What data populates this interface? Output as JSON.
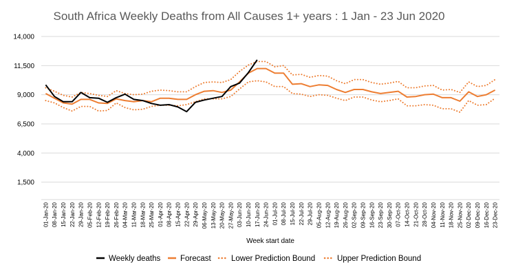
{
  "chart_data": {
    "type": "line",
    "title": "South Africa Weekly Deaths from All Causes 1+ years : 1 Jan  - 23 Jun 2020",
    "xlabel": "Week start date",
    "ylabel": "",
    "ylim": [
      0,
      14000
    ],
    "yticks": [
      1500,
      4000,
      6500,
      9000,
      11500,
      14000
    ],
    "ytick_labels": [
      "1,500",
      "4,000",
      "6,500",
      "9,000",
      "11,500",
      "14,000"
    ],
    "grid": "horizontal",
    "legend_position": "bottom",
    "categories": [
      "01-Jan-20",
      "08-Jan-20",
      "15-Jan-20",
      "22-Jan-20",
      "29-Jan-20",
      "05-Feb-20",
      "12-Feb-20",
      "19-Feb-20",
      "26-Feb-20",
      "04-Mar-20",
      "11-Mar-20",
      "18-Mar-20",
      "25-Mar-20",
      "01-Apr-20",
      "08-Apr-20",
      "15-Apr-20",
      "22-Apr-20",
      "29-Apr-20",
      "06-May-20",
      "13-May-20",
      "20-May-20",
      "27-May-20",
      "03-Jun-20",
      "10-Jun-20",
      "17-Jun-20",
      "24-Jun-20",
      "01-Jul-20",
      "08-Jul-20",
      "15-Jul-20",
      "22-Jul-20",
      "29-Jul-20",
      "05-Aug-20",
      "12-Aug-20",
      "19-Aug-20",
      "26-Aug-20",
      "02-Sep-20",
      "09-Sep-20",
      "16-Sep-20",
      "23-Sep-20",
      "30-Sep-20",
      "07-Oct-20",
      "14-Oct-20",
      "21-Oct-20",
      "28-Oct-20",
      "04-Nov-20",
      "11-Nov-20",
      "18-Nov-20",
      "25-Nov-20",
      "02-Dec-20",
      "09-Dec-20",
      "16-Dec-20",
      "23-Dec-20"
    ],
    "series": [
      {
        "name": "Weekly deaths",
        "color": "#000000",
        "style": "solid",
        "values": [
          9850,
          8850,
          8400,
          8400,
          9200,
          8750,
          8700,
          8350,
          8750,
          9050,
          8600,
          8500,
          8250,
          8100,
          8150,
          7950,
          7550,
          8350,
          8550,
          8700,
          8850,
          9700,
          10000,
          10900,
          12000,
          null,
          null,
          null,
          null,
          null,
          null,
          null,
          null,
          null,
          null,
          null,
          null,
          null,
          null,
          null,
          null,
          null,
          null,
          null,
          null,
          null,
          null,
          null,
          null,
          null,
          null,
          null
        ]
      },
      {
        "name": "Forecast",
        "color": "#ed7d31",
        "style": "solid",
        "values": [
          9100,
          8700,
          8300,
          8200,
          8600,
          8600,
          8300,
          8250,
          8650,
          8500,
          8400,
          8500,
          8400,
          8700,
          8700,
          8600,
          8600,
          9000,
          9300,
          9350,
          9200,
          9400,
          10100,
          10850,
          11250,
          11250,
          10850,
          10850,
          9900,
          9950,
          9700,
          9850,
          9800,
          9450,
          9200,
          9450,
          9450,
          9250,
          9100,
          9200,
          9300,
          8800,
          8850,
          9000,
          9050,
          8750,
          8750,
          8450,
          9250,
          8850,
          9000,
          9400
        ]
      },
      {
        "name": "Lower Prediction Bound",
        "color": "#ed7d31",
        "style": "dotted",
        "values": [
          8500,
          8300,
          7900,
          7600,
          8000,
          8000,
          7600,
          7650,
          8300,
          7900,
          7700,
          7750,
          8000,
          8100,
          8100,
          8050,
          8150,
          8400,
          8650,
          8650,
          8650,
          8850,
          9500,
          10100,
          10200,
          10100,
          9700,
          9700,
          9100,
          9050,
          8850,
          9000,
          8950,
          8700,
          8500,
          8800,
          8800,
          8550,
          8400,
          8500,
          8650,
          8050,
          8050,
          8150,
          8100,
          7800,
          7800,
          7500,
          8500,
          8100,
          8150,
          8700
        ]
      },
      {
        "name": "Upper Prediction Bound",
        "color": "#ed7d31",
        "style": "dotted",
        "values": [
          9600,
          9300,
          8950,
          8800,
          9200,
          9100,
          8950,
          8850,
          9350,
          9100,
          9000,
          9050,
          9300,
          9400,
          9350,
          9250,
          9250,
          9700,
          10050,
          10100,
          10050,
          10300,
          11000,
          11550,
          11850,
          11850,
          11400,
          11500,
          10700,
          10750,
          10500,
          10650,
          10600,
          10200,
          9950,
          10300,
          10300,
          10050,
          9900,
          10000,
          10150,
          9600,
          9600,
          9750,
          9800,
          9400,
          9450,
          9200,
          10100,
          9700,
          9800,
          10300
        ]
      }
    ]
  }
}
